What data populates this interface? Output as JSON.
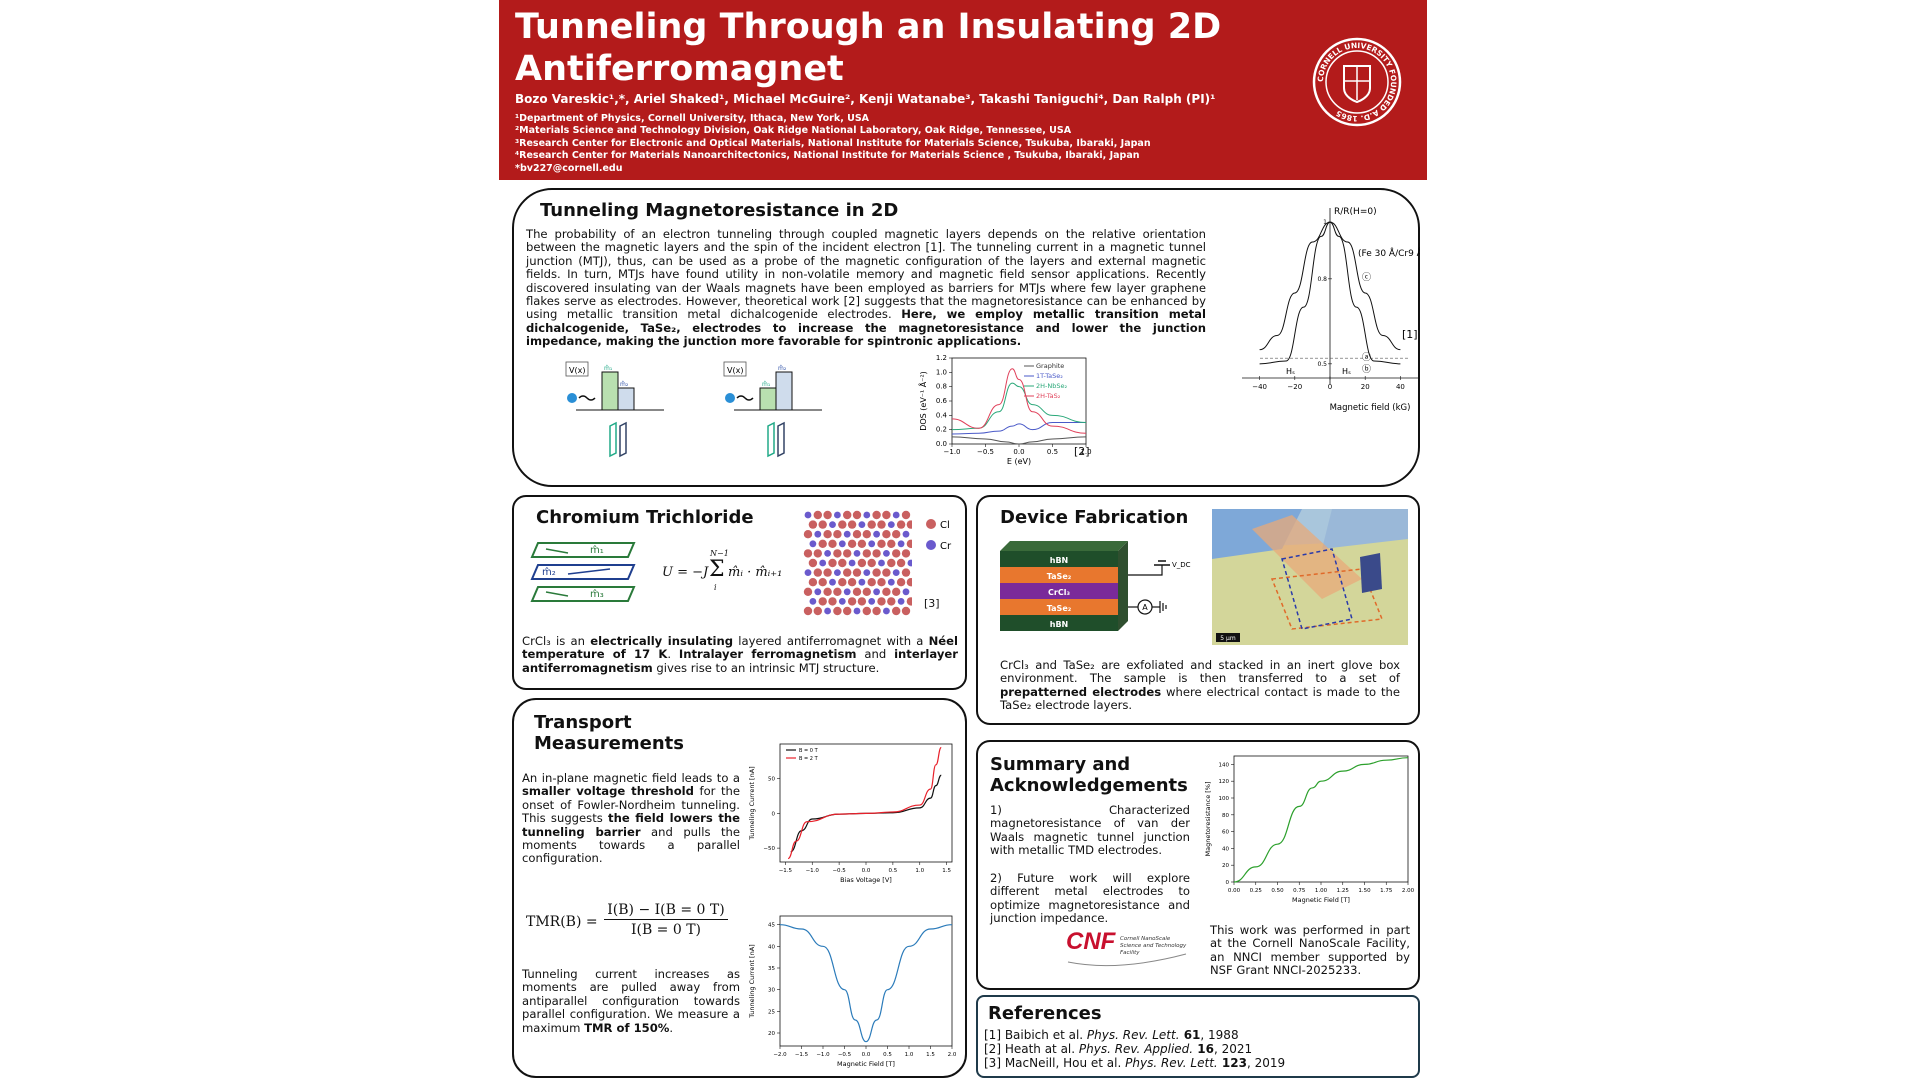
{
  "header": {
    "title": "Tunneling Through an Insulating 2D Antiferromagnet",
    "authors": "Bozo Vareskic¹,*, Ariel Shaked¹, Michael McGuire², Kenji Watanabe³, Takashi Taniguchi⁴, Dan Ralph (PI)¹",
    "affiliations": [
      "¹Department of Physics, Cornell University, Ithaca, New York, USA",
      "²Materials Science and Technology Division, Oak Ridge National Laboratory, Oak Ridge, Tennessee, USA",
      "³Research Center for Electronic and Optical Materials, National Institute for Materials Science, Tsukuba, Ibaraki, Japan",
      "⁴Research Center for Materials Nanoarchitectonics, National Institute for Materials Science , Tsukuba, Ibaraki, Japan",
      "*bv227@cornell.edu"
    ],
    "seal_text": "CORNELL UNIVERSITY FOUNDED A.D. 1865"
  },
  "tmr": {
    "heading": "Tunneling Magnetoresistance in 2D",
    "paragraph": "The probability of an electron tunneling through coupled magnetic layers depends on the relative orientation between the magnetic layers and the spin of the incident electron [1]. The tunneling current in a magnetic tunnel junction (MTJ), thus, can be used as a probe of the magnetic configuration of the layers and external magnetic fields. In turn, MTJs have found utility in non-volatile memory and magnetic field sensor applications. Recently discovered insulating van der Waals magnets have been employed as barriers for MTJs where few layer graphene flakes serve as electrodes. However, theoretical work [2] suggests that the magnetoresistance can be enhanced by using metallic transition metal dichalcogenide electrodes.",
    "paragraph_bold": "Here, we employ metallic transition metal dichalcogenide, TaSe₂, electrodes to increase the magnetoresistance and lower the junction impedance, making the junction more favorable for spintronic applications.",
    "vx_label": "V(x)",
    "m1": "m̂₁",
    "m2": "m̂₂",
    "ref2": "[2]",
    "ref1": "[1]",
    "dos": {
      "ylabel": "DOS (eV⁻¹ Å⁻²)",
      "xlabel": "E (eV)",
      "yticks": [
        "1.2",
        "1.0",
        "0.8",
        "0.6",
        "0.4",
        "0.2",
        "0.0"
      ],
      "xticks": [
        "−1.0",
        "−0.5",
        "0.0",
        "0.5",
        "1.0"
      ],
      "legend": [
        "Graphite",
        "1T-TaSe₂",
        "2H-NbSe₂",
        "2H-TaS₂"
      ]
    },
    "rr": {
      "ylabel": "R/R(H=0)",
      "xlabel": "Magnetic field (kG)",
      "xticks": [
        "−40",
        "−20",
        "0",
        "20",
        "40"
      ],
      "yticks": [
        "1",
        "0.8",
        "0.5"
      ],
      "curve_label": "(Fe 30 Å/Cr9 Å)₄₀",
      "labels": [
        "ⓒ",
        "ⓐ",
        "ⓑ"
      ],
      "hs": "Hₛ"
    }
  },
  "crcl": {
    "heading": "Chromium Trichloride",
    "layers": [
      "m̂₁",
      "m̂₂",
      "m̂₃"
    ],
    "equation": "U = −J Σᵢᴺ⁻¹ m̂ᵢ · m̂ᵢ₊₁",
    "eq_lhs": "U = −J",
    "eq_sum_top": "N−1",
    "eq_sum_bot": "i",
    "eq_rhs": "m̂ᵢ · m̂ᵢ₊₁",
    "legend_cl": "Cl",
    "legend_cr": "Cr",
    "ref": "[3]",
    "t1": "CrCl₃ is an ",
    "t2": "electrically insulating",
    "t3": " layered antiferromagnet with a ",
    "t4": "Néel temperature of 17 K",
    "t5": ". ",
    "t6": "Intralayer ferromagnetism",
    "t7": " and ",
    "t8": "interlayer antiferromagnetism",
    "t9": " gives rise to an intrinsic MTJ structure."
  },
  "device": {
    "heading": "Device Fabrication",
    "stack": [
      "hBN",
      "TaSe₂",
      "CrCl₃",
      "TaSe₂",
      "hBN"
    ],
    "vdc": "V_DC",
    "ammeter": "A",
    "scale": "5 μm",
    "t1": "CrCl₃ and TaSe₂ are exfoliated and stacked in an inert glove box environment. The sample is then transferred to a set of ",
    "t2": "prepatterned electrodes",
    "t3": " where electrical contact is made to the TaSe₂ electrode layers."
  },
  "transport": {
    "heading": "Transport Measurements",
    "p1_a": "An in-plane magnetic field leads to a ",
    "p1_b": "smaller voltage threshold",
    "p1_c": " for the onset of Fowler-Nordheim tunneling. This suggests ",
    "p1_d": "the field lowers the tunneling barrier",
    "p1_e": " and pulls the moments towards a parallel configuration.",
    "tmr_lhs": "TMR(B) =",
    "tmr_num": "I(B) − I(B = 0 T)",
    "tmr_den": "I(B = 0 T)",
    "p2_a": "Tunneling current increases as moments are pulled away from antiparallel configuration towards parallel configuration. We measure a maximum ",
    "p2_b": "TMR of 150%",
    "p2_c": ".",
    "iv": {
      "ylabel": "Tunneling Current [nA]",
      "xlabel": "Bias Voltage [V]",
      "xticks": [
        "−1.5",
        "−1.0",
        "−0.5",
        "0.0",
        "0.5",
        "1.0",
        "1.5"
      ],
      "yticks": [
        "50",
        "0",
        "−50"
      ],
      "legend": [
        "B = 0 T",
        "B = 2 T"
      ],
      "colors": [
        "#111111",
        "#e8202a"
      ]
    },
    "ib": {
      "ylabel": "Tunneling Current [nA]",
      "xlabel": "Magnetic Field [T]",
      "xticks": [
        "−2.0",
        "−1.5",
        "−1.0",
        "−0.5",
        "0.0",
        "0.5",
        "1.0",
        "1.5",
        "2.0"
      ],
      "yticks": [
        "45",
        "40",
        "35",
        "30",
        "25",
        "20"
      ],
      "color": "#2b7bba"
    }
  },
  "summary": {
    "heading": "Summary and Acknowledgements",
    "p1": "1) Characterized magnetoresistance of van der Waals magnetic tunnel junction with metallic TMD electrodes.",
    "p2": "2) Future work will explore different metal electrodes to optimize magnetoresistance and junction impedance.",
    "ack": "This work was performed in part at the Cornell NanoScale Facility, an NNCI member supported by NSF Grant NNCI-2025233.",
    "cnf_logo": "CNF",
    "cnf_sub": "Cornell NanoScale Science and Technology Facility",
    "mr": {
      "ylabel": "Magnetoresistance [%]",
      "xlabel": "Magnetic Field [T]",
      "xticks": [
        "0.00",
        "0.25",
        "0.50",
        "0.75",
        "1.00",
        "1.25",
        "1.50",
        "1.75",
        "2.00"
      ],
      "yticks": [
        "140",
        "120",
        "100",
        "80",
        "60",
        "40",
        "20",
        "0"
      ],
      "color": "#2ca02c"
    }
  },
  "references": {
    "heading": "References",
    "items": [
      {
        "pre": "[1] Baibich et al. ",
        "journal": "Phys. Rev. Lett.",
        "vol": " 61",
        "post": ", 1988"
      },
      {
        "pre": "[2] Heath at al. ",
        "journal": "Phys. Rev. Applied.",
        "vol": " 16",
        "post": ", 2021"
      },
      {
        "pre": "[3] MacNeill, Hou et al. ",
        "journal": "Phys. Rev. Lett.",
        "vol": " 123",
        "post": ", 2019"
      }
    ]
  },
  "chart_data": [
    {
      "type": "line",
      "title": "",
      "xlabel": "E (eV)",
      "ylabel": "DOS (eV⁻¹ Å⁻²)",
      "xlim": [
        -1.0,
        1.0
      ],
      "ylim": [
        0.0,
        1.2
      ],
      "series": [
        {
          "name": "Graphite",
          "x": [
            -1.0,
            -0.5,
            -0.2,
            0.0,
            0.2,
            0.5,
            1.0
          ],
          "values": [
            0.1,
            0.07,
            0.03,
            0.0,
            0.03,
            0.07,
            0.1
          ]
        },
        {
          "name": "1T-TaSe₂",
          "x": [
            -1.0,
            -0.6,
            -0.3,
            -0.1,
            0.0,
            0.2,
            0.5,
            1.0
          ],
          "values": [
            0.14,
            0.15,
            0.18,
            0.25,
            0.28,
            0.2,
            0.3,
            0.3
          ]
        },
        {
          "name": "2H-NbSe₂",
          "x": [
            -1.0,
            -0.6,
            -0.3,
            -0.1,
            0.0,
            0.2,
            0.5,
            1.0
          ],
          "values": [
            0.2,
            0.22,
            0.45,
            0.85,
            0.8,
            0.55,
            0.4,
            0.3
          ]
        },
        {
          "name": "2H-TaS₂",
          "x": [
            -1.0,
            -0.6,
            -0.3,
            -0.1,
            0.0,
            0.2,
            0.5,
            1.0
          ],
          "values": [
            0.35,
            0.22,
            0.55,
            1.05,
            0.9,
            0.45,
            0.25,
            0.15
          ]
        }
      ]
    },
    {
      "type": "line",
      "xlabel": "Magnetic field (kG)",
      "ylabel": "R/R(H=0)",
      "xlim": [
        -50,
        50
      ],
      "ylim": [
        0.45,
        1.05
      ],
      "series": [
        {
          "name": "(Fe 30 Å/Cr9 Å)₄₀",
          "x": [
            -40,
            -30,
            -20,
            -10,
            0,
            10,
            20,
            30,
            40
          ],
          "values": [
            0.55,
            0.6,
            0.75,
            0.93,
            1.0,
            0.93,
            0.75,
            0.6,
            0.55
          ]
        },
        {
          "name": "",
          "x": [
            -40,
            -25,
            -15,
            -5,
            0,
            5,
            15,
            25,
            40
          ],
          "values": [
            0.5,
            0.51,
            0.7,
            0.95,
            1.0,
            0.95,
            0.7,
            0.51,
            0.5
          ]
        }
      ]
    },
    {
      "type": "line",
      "xlabel": "Bias Voltage [V]",
      "ylabel": "Tunneling Current [nA]",
      "xlim": [
        -1.6,
        1.6
      ],
      "ylim": [
        -70,
        100
      ],
      "series": [
        {
          "name": "B = 0 T",
          "x": [
            -1.4,
            -1.2,
            -1.0,
            -0.5,
            0.0,
            0.5,
            1.0,
            1.2,
            1.3,
            1.4
          ],
          "values": [
            -55,
            -25,
            -8,
            -1,
            0,
            1,
            8,
            22,
            40,
            55
          ]
        },
        {
          "name": "B = 2 T",
          "x": [
            -1.45,
            -1.3,
            -1.1,
            -0.5,
            0.0,
            0.5,
            1.0,
            1.2,
            1.3,
            1.4
          ],
          "values": [
            -65,
            -40,
            -12,
            -1,
            0,
            2,
            12,
            35,
            70,
            95
          ]
        }
      ]
    },
    {
      "type": "line",
      "xlabel": "Magnetic Field [T]",
      "ylabel": "Tunneling Current [nA]",
      "xlim": [
        -2.0,
        2.0
      ],
      "ylim": [
        17,
        47
      ],
      "series": [
        {
          "name": "",
          "x": [
            -2.0,
            -1.5,
            -1.0,
            -0.5,
            -0.25,
            0.0,
            0.25,
            0.5,
            1.0,
            1.5,
            2.0
          ],
          "values": [
            45,
            44,
            40,
            30,
            23,
            18,
            23,
            30,
            40,
            44,
            45
          ]
        }
      ]
    },
    {
      "type": "line",
      "xlabel": "Magnetic Field [T]",
      "ylabel": "Magnetoresistance [%]",
      "xlim": [
        0.0,
        2.0
      ],
      "ylim": [
        0,
        150
      ],
      "series": [
        {
          "name": "",
          "x": [
            0.0,
            0.25,
            0.5,
            0.75,
            0.9,
            1.0,
            1.25,
            1.5,
            1.75,
            2.0
          ],
          "values": [
            0,
            18,
            45,
            90,
            112,
            120,
            132,
            140,
            145,
            148
          ]
        }
      ]
    }
  ]
}
